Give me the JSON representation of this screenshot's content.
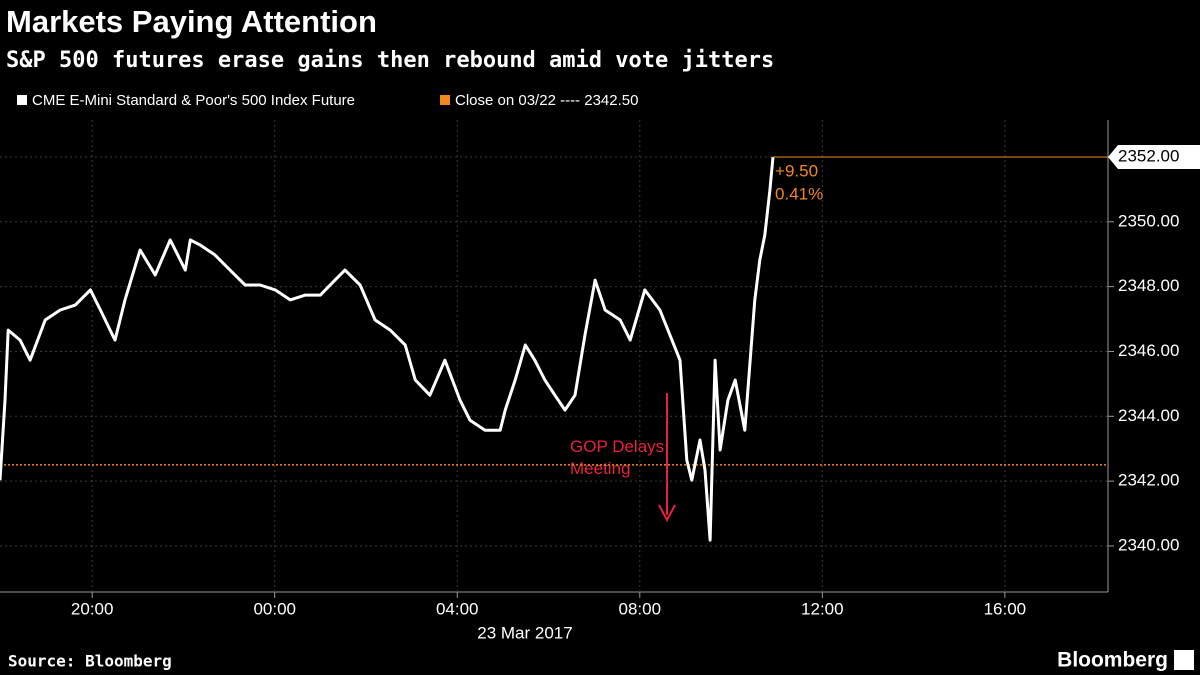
{
  "chart_data": {
    "type": "line",
    "title": "Markets Paying Attention",
    "subtitle": "S&P 500 futures erase gains then rebound amid vote jitters",
    "x": [
      -6.02,
      -5.91,
      -5.84,
      -5.58,
      -5.36,
      -5.03,
      -4.7,
      -4.37,
      -4.04,
      -3.82,
      -3.5,
      -3.28,
      -2.95,
      -2.62,
      -2.29,
      -1.96,
      -1.85,
      -1.63,
      -1.31,
      -0.98,
      -0.65,
      -0.32,
      0.01,
      0.34,
      0.67,
      1.0,
      1.32,
      1.54,
      1.87,
      2.2,
      2.53,
      2.86,
      3.08,
      3.4,
      3.73,
      4.06,
      4.28,
      4.61,
      4.94,
      5.05,
      5.27,
      5.49,
      5.7,
      5.92,
      6.14,
      6.36,
      6.58,
      6.8,
      7.02,
      7.24,
      7.57,
      7.79,
      8.11,
      8.44,
      8.66,
      8.88,
      9.03,
      9.14,
      9.32,
      9.43,
      9.54,
      9.65,
      9.76,
      9.93,
      10.09,
      10.3,
      10.52,
      10.63,
      10.74,
      10.85,
      10.92
    ],
    "series": [
      {
        "name": "CME E-Mini Standard & Poor's 500 Index Future",
        "color": "#ffffff",
        "values": [
          2342.03,
          2344.5,
          2346.66,
          2346.35,
          2345.73,
          2346.97,
          2347.28,
          2347.43,
          2347.9,
          2347.28,
          2346.35,
          2347.59,
          2349.13,
          2348.36,
          2349.44,
          2348.51,
          2349.44,
          2349.28,
          2348.98,
          2348.51,
          2348.05,
          2348.05,
          2347.9,
          2347.59,
          2347.74,
          2347.74,
          2348.2,
          2348.51,
          2348.05,
          2346.97,
          2346.66,
          2346.2,
          2345.12,
          2344.65,
          2345.73,
          2344.5,
          2343.88,
          2343.57,
          2343.57,
          2344.19,
          2345.12,
          2346.2,
          2345.73,
          2345.12,
          2344.65,
          2344.19,
          2344.65,
          2346.51,
          2348.2,
          2347.28,
          2346.97,
          2346.35,
          2347.9,
          2347.28,
          2346.51,
          2345.73,
          2342.65,
          2342.03,
          2343.27,
          2342.34,
          2340.18,
          2345.73,
          2342.96,
          2344.5,
          2345.12,
          2343.57,
          2347.59,
          2348.82,
          2349.59,
          2350.98,
          2352.0
        ]
      }
    ],
    "reference_line": {
      "value": 2342.5,
      "label": "Close on 03/22 ---- 2342.50",
      "color": "#f0871f"
    },
    "last_label": {
      "value": 2352,
      "label": "2352.00"
    },
    "change_labels": [
      "+9.50",
      "0.41%"
    ],
    "annotation": {
      "text": "GOP Delays Meeting",
      "color": "#e8213f"
    },
    "xlim": [
      -6.02,
      18.26
    ],
    "xticks": [
      {
        "value": -4,
        "label": "20:00"
      },
      {
        "value": 0,
        "label": "00:00"
      },
      {
        "value": 4,
        "label": "04:00"
      },
      {
        "value": 8,
        "label": "08:00"
      },
      {
        "value": 12,
        "label": "12:00"
      },
      {
        "value": 16,
        "label": "16:00"
      }
    ],
    "xlabel": "23 Mar 2017",
    "ylim": [
      2338.58,
      2353.14
    ],
    "yticks": [
      {
        "value": 2340,
        "label": "2340.00"
      },
      {
        "value": 2342,
        "label": "2342.00"
      },
      {
        "value": 2344,
        "label": "2344.00"
      },
      {
        "value": 2346,
        "label": "2346.00"
      },
      {
        "value": 2348,
        "label": "2348.00"
      },
      {
        "value": 2350,
        "label": "2350.00"
      },
      {
        "value": 2352,
        "label": "2352.00"
      }
    ],
    "grid": true,
    "source": "Source: Bloomberg",
    "brand": "Bloomberg"
  }
}
